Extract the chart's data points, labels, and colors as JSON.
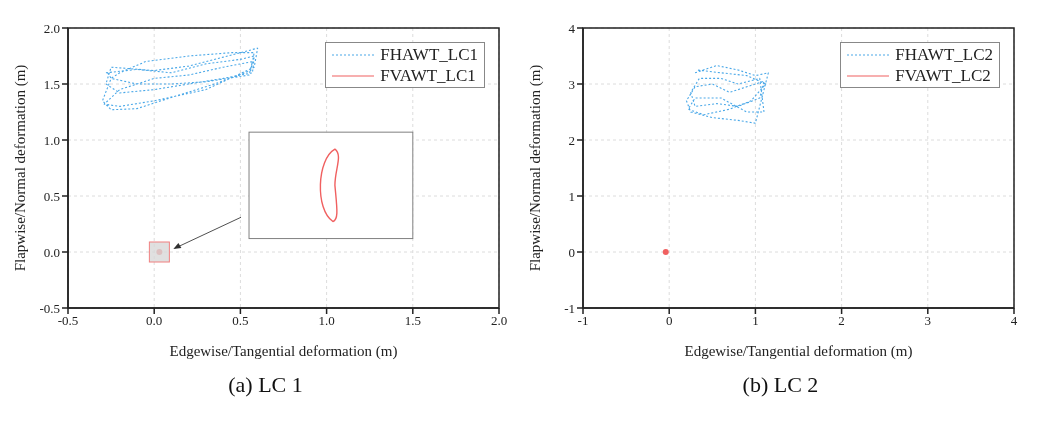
{
  "chart_data": [
    {
      "type": "line",
      "title": "(a) LC 1",
      "xlabel": "Edgewise/Tangential deformation (m)",
      "ylabel": "Flapwise/Normal deformation (m)",
      "xlim": [
        -0.5,
        2.0
      ],
      "xticks": [
        {
          "value": -0.5,
          "label": "-0.5"
        },
        {
          "value": 0,
          "label": "0.0"
        },
        {
          "value": 0.5,
          "label": "0.5"
        },
        {
          "value": 1,
          "label": "1.0"
        },
        {
          "value": 1.5,
          "label": "1.5"
        },
        {
          "value": 2,
          "label": "2.0"
        }
      ],
      "ylim": [
        -0.5,
        2.0
      ],
      "yticks": [
        {
          "value": -0.5,
          "label": "-0.5"
        },
        {
          "value": 0,
          "label": "0.0"
        },
        {
          "value": 0.5,
          "label": "0.5"
        },
        {
          "value": 1,
          "label": "1.0"
        },
        {
          "value": 1.5,
          "label": "1.5"
        },
        {
          "value": 2,
          "label": "2.0"
        }
      ],
      "grid": true,
      "legend": "top right",
      "marker": "none",
      "series": [
        {
          "name": "FHAWT_LC1",
          "color": "#4aa8e8",
          "line_style": "dotted",
          "x": [
            -0.28,
            -0.1,
            0.1,
            0.3,
            0.5,
            0.58,
            0.57,
            0.4,
            0.2,
            0,
            -0.2,
            -0.28,
            -0.25,
            0,
            0.2,
            0.4,
            0.6,
            0.58,
            0.3,
            0,
            -0.2,
            -0.29,
            -0.2,
            0,
            0.2,
            0.4,
            0.57,
            0.55,
            0.3,
            0.1,
            -0.1,
            -0.25,
            -0.2,
            -0.05,
            0.2,
            0.45,
            0.58,
            0.56,
            0.35,
            0.1,
            -0.1,
            -0.25,
            -0.3,
            -0.25,
            -0.27
          ],
          "values": [
            1.6,
            1.63,
            1.6,
            1.68,
            1.72,
            1.75,
            1.6,
            1.55,
            1.5,
            1.45,
            1.42,
            1.5,
            1.65,
            1.62,
            1.66,
            1.74,
            1.82,
            1.65,
            1.45,
            1.35,
            1.3,
            1.32,
            1.45,
            1.55,
            1.58,
            1.65,
            1.7,
            1.58,
            1.52,
            1.5,
            1.5,
            1.55,
            1.6,
            1.7,
            1.75,
            1.78,
            1.78,
            1.62,
            1.5,
            1.38,
            1.28,
            1.27,
            1.35,
            1.55,
            1.6
          ]
        },
        {
          "name": "FVAWT_LC1",
          "type": "scatter",
          "marker": "circle",
          "color": "#f06060",
          "line_style": "solid",
          "x": [
            0.03
          ],
          "values": [
            0
          ]
        }
      ]
    },
    {
      "type": "line",
      "title": "(b) LC 2",
      "xlabel": "Edgewise/Tangential deformation (m)",
      "ylabel": "Flapwise/Normal deformation (m)",
      "xlim": [
        -1,
        4
      ],
      "xticks": [
        -1,
        0,
        1,
        2,
        3,
        4
      ],
      "ylim": [
        -1,
        4
      ],
      "yticks": [
        -1,
        0,
        1,
        2,
        3,
        4
      ],
      "grid": true,
      "legend": "top right",
      "marker": "none",
      "series": [
        {
          "name": "FHAWT_LC2",
          "color": "#4aa8e8",
          "line_style": "dotted",
          "x": [
            0.3,
            0.55,
            0.8,
            1.0,
            1.15,
            1.1,
            1.05,
            1.0,
            0.8,
            0.5,
            0.25,
            0.2,
            0.3,
            0.5,
            0.7,
            0.9,
            1.1,
            1.05,
            0.8,
            0.55,
            0.3,
            0.25,
            0.35,
            0.6,
            0.8,
            1.05,
            1.1,
            0.9,
            0.6,
            0.3,
            0.22,
            0.4,
            0.7,
            0.95,
            1.12,
            0.9,
            0.6,
            0.32
          ],
          "values": [
            3.2,
            3.33,
            3.25,
            3.15,
            3.2,
            2.9,
            2.6,
            2.3,
            2.35,
            2.4,
            2.5,
            2.7,
            2.95,
            3.0,
            2.85,
            2.95,
            3.05,
            2.75,
            2.6,
            2.65,
            2.6,
            2.85,
            3.1,
            3.1,
            3.0,
            3.1,
            2.5,
            2.5,
            2.75,
            2.75,
            2.55,
            2.45,
            2.55,
            2.7,
            3.0,
            3.15,
            3.2,
            3.25
          ]
        },
        {
          "name": "FVAWT_LC2",
          "color": "#f06060",
          "line_style": "solid",
          "type": "scatter",
          "marker": "circle",
          "x": [
            -0.04
          ],
          "values": [
            0
          ]
        }
      ]
    }
  ]
}
